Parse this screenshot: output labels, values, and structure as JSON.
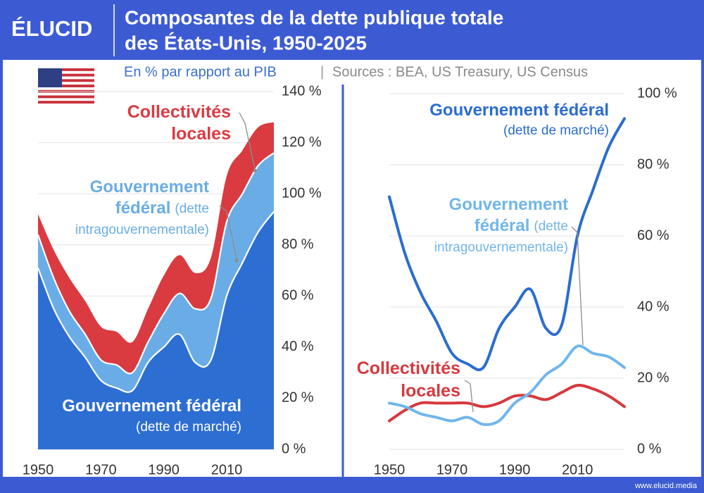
{
  "page": {
    "logo": "ÉLUCID",
    "title_lines": [
      "Composantes de la dette publique totale",
      "des États-Unis, 1950-2025"
    ],
    "subtitle": "En % par rapport au PIB",
    "separator": "|",
    "source": "Sources : BEA, US Treasury, US Census",
    "website": "www.elucid.media"
  },
  "chart_data": [
    {
      "type": "stacked_area",
      "x": [
        1950,
        1955,
        1960,
        1965,
        1970,
        1975,
        1980,
        1985,
        1990,
        1995,
        2000,
        2005,
        2010,
        2015,
        2020,
        2025
      ],
      "xlim": [
        1950,
        2025
      ],
      "xticks": [
        1950,
        1970,
        1990,
        2010
      ],
      "ylim": [
        0,
        140
      ],
      "yticks": [
        {
          "value": 0,
          "label": "0 %"
        },
        {
          "value": 20,
          "label": "20 %"
        },
        {
          "value": 40,
          "label": "40 %"
        },
        {
          "value": 60,
          "label": "60 %"
        },
        {
          "value": 80,
          "label": "80 %"
        },
        {
          "value": 100,
          "label": "100 %"
        },
        {
          "value": 120,
          "label": "120 %"
        },
        {
          "value": 140,
          "label": "140 %"
        }
      ],
      "grid": true,
      "series": [
        {
          "name": "Gouvernement fédéral",
          "detail": "(dette de marché)",
          "color": "#2d6ed2",
          "values": [
            71,
            55,
            44,
            36,
            27,
            24,
            23,
            34,
            40,
            45,
            34,
            35,
            60,
            73,
            85,
            93
          ]
        },
        {
          "name": "Gouvernement fédéral",
          "detail": "(dette intragouvernementale)",
          "color": "#6aade6",
          "values": [
            13,
            12,
            10,
            9,
            8,
            9,
            7,
            8,
            13,
            16,
            21,
            24,
            29,
            27,
            26,
            23
          ]
        },
        {
          "name": "Collectivités locales",
          "color": "#d93b41",
          "values": [
            8,
            11,
            13,
            13,
            13,
            13,
            12,
            13,
            15,
            15,
            14,
            16,
            18,
            17,
            15,
            12
          ]
        }
      ]
    },
    {
      "type": "line",
      "x": [
        1950,
        1955,
        1960,
        1965,
        1970,
        1975,
        1980,
        1985,
        1990,
        1995,
        2000,
        2005,
        2010,
        2015,
        2020,
        2025
      ],
      "xlim": [
        1950,
        2025
      ],
      "xticks": [
        1950,
        1970,
        1990,
        2010
      ],
      "ylim": [
        0,
        100
      ],
      "yticks": [
        {
          "value": 0,
          "label": "0 %"
        },
        {
          "value": 20,
          "label": "20 %"
        },
        {
          "value": 40,
          "label": "40 %"
        },
        {
          "value": 60,
          "label": "60 %"
        },
        {
          "value": 80,
          "label": "80 %"
        },
        {
          "value": 100,
          "label": "100 %"
        }
      ],
      "grid": true,
      "series": [
        {
          "name": "Gouvernement fédéral",
          "detail": "(dette de marché)",
          "color": "#2b6dcf",
          "values": [
            71,
            55,
            44,
            36,
            27,
            24,
            23,
            34,
            40,
            45,
            34,
            35,
            60,
            73,
            85,
            93
          ]
        },
        {
          "name": "Gouvernement fédéral",
          "detail": "(dette intragouvernementale)",
          "color": "#71b6ea",
          "values": [
            13,
            12,
            10,
            9,
            8,
            9,
            7,
            8,
            13,
            16,
            21,
            24,
            29,
            27,
            26,
            23
          ]
        },
        {
          "name": "Collectivités locales",
          "color": "#d6393e",
          "values": [
            8,
            11,
            13,
            13,
            13,
            13,
            12,
            13,
            15,
            15,
            14,
            16,
            18,
            17,
            15,
            12
          ]
        }
      ]
    }
  ]
}
